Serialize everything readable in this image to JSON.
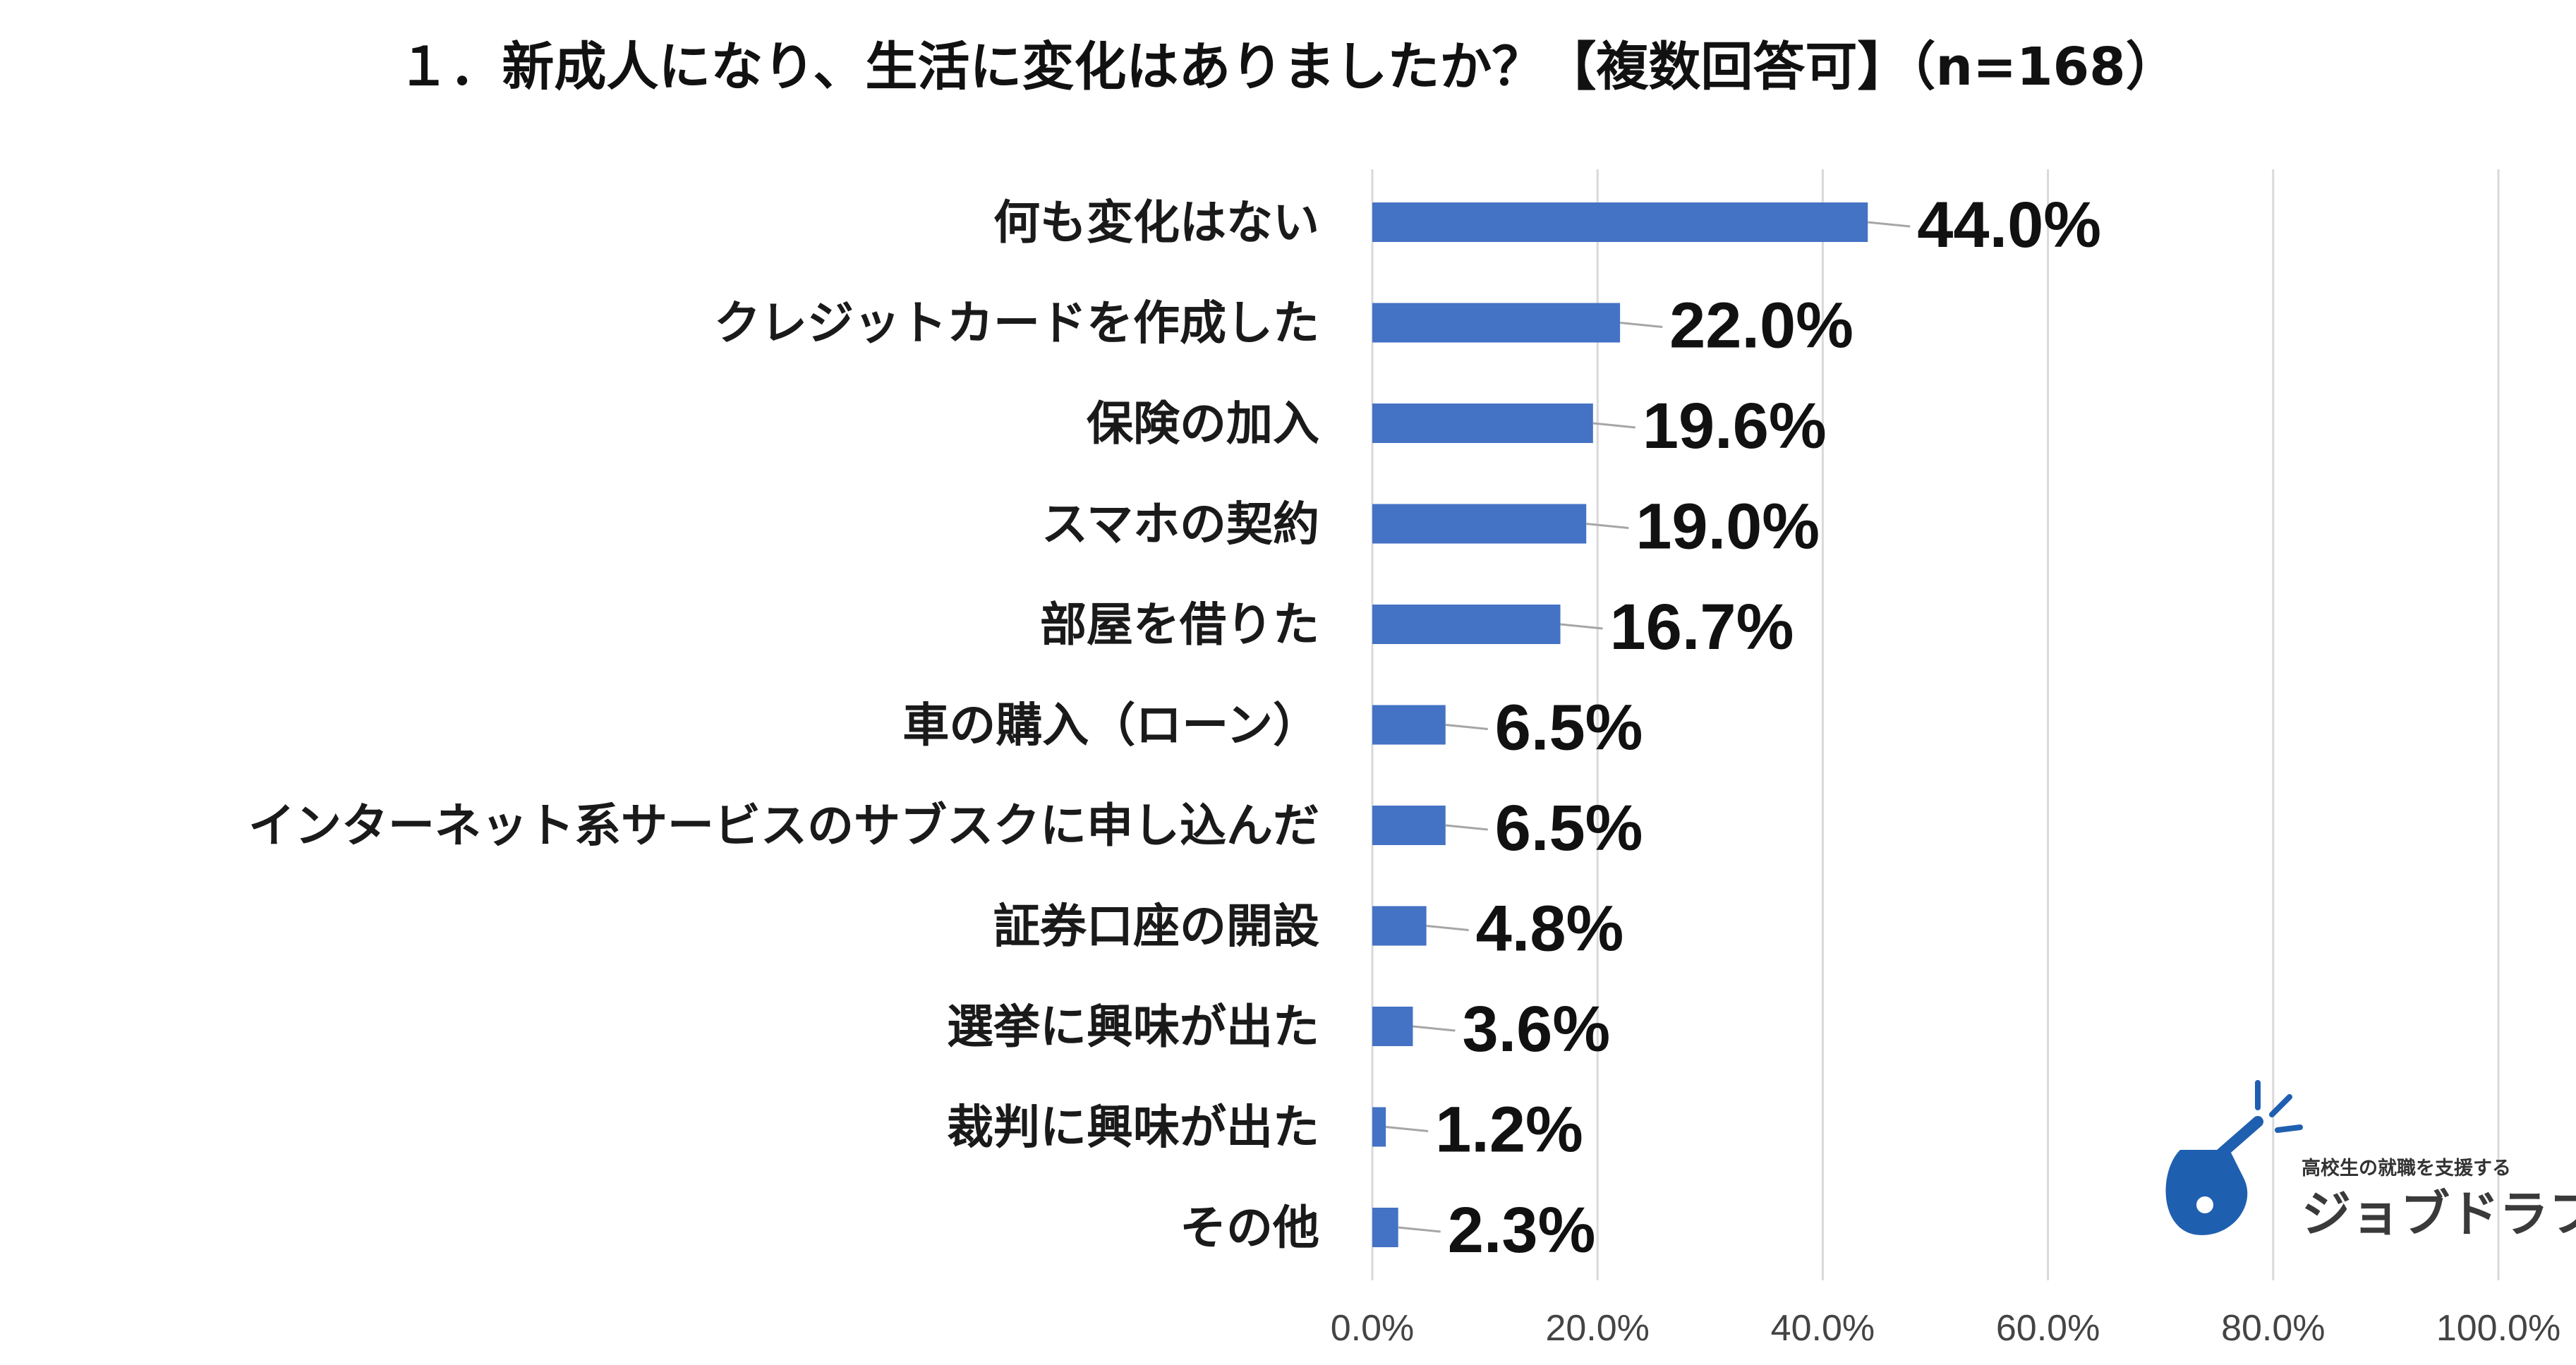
{
  "chart_data": {
    "type": "bar",
    "orientation": "horizontal",
    "title": "１．新成人になり、生活に変化はありましたか？【複数回答可】（n=168）",
    "categories": [
      "何も変化はない",
      "クレジットカードを作成した",
      "保険の加入",
      "スマホの契約",
      "部屋を借りた",
      "車の購入（ローン）",
      "インターネット系サービスのサブスクに申し込んだ",
      "証券口座の開設",
      "選挙に興味が出た",
      "裁判に興味が出た",
      "その他"
    ],
    "values": [
      44.0,
      22.0,
      19.6,
      19.0,
      16.7,
      6.5,
      6.5,
      4.8,
      3.6,
      1.2,
      2.3
    ],
    "value_labels": [
      "44.0%",
      "22.0%",
      "19.6%",
      "19.0%",
      "16.7%",
      "6.5%",
      "6.5%",
      "4.8%",
      "3.6%",
      "1.2%",
      "2.3%"
    ],
    "xlim": [
      0,
      100
    ],
    "ticks": [
      0,
      20,
      40,
      60,
      80,
      100
    ],
    "tick_labels": [
      "0.0%",
      "20.0%",
      "40.0%",
      "60.0%",
      "80.0%",
      "100.0%"
    ],
    "xlabel": "",
    "ylabel": "",
    "grid": true,
    "legend": "none"
  },
  "colors": {
    "bar": "#4472C4",
    "logo": "#1F5FB0"
  },
  "logo": {
    "tagline": "高校生の就職を支援する",
    "name": "ジョブドラフト",
    "icon": "guitar-pick-logo-icon"
  }
}
